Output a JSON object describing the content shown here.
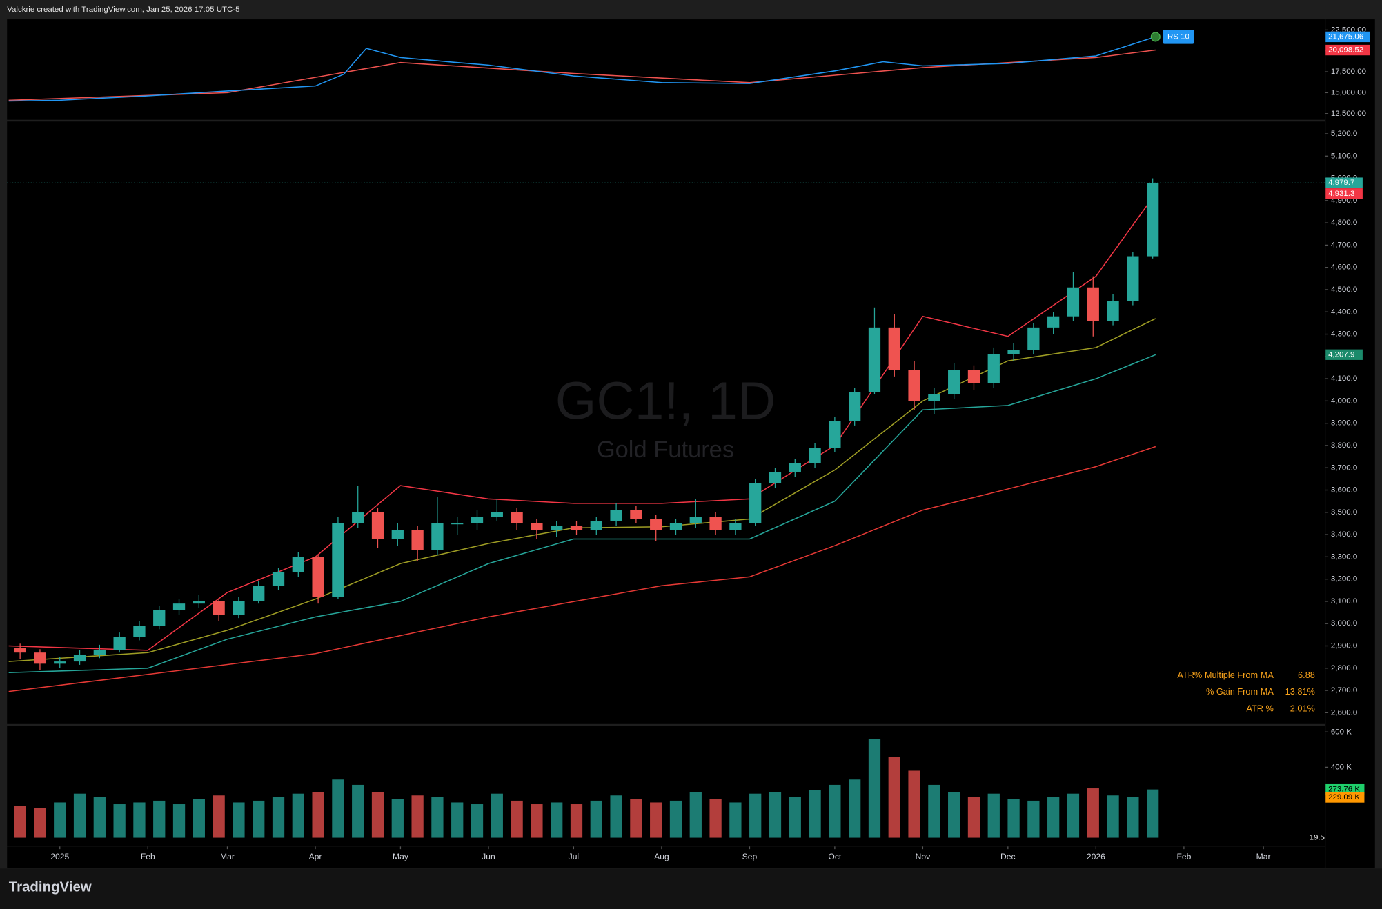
{
  "header": {
    "attribution": "Valckrie created with TradingView.com, Jan 25, 2026 17:05 UTC-5"
  },
  "watermark": {
    "symbol": "GC1!, 1D",
    "name": "Gold Futures"
  },
  "footer": {
    "brand": "TradingView"
  },
  "chart_data": {
    "type": "candlestick",
    "xlim": [
      -18.6,
      445.6
    ],
    "ylim": [
      2549,
      5255
    ],
    "up_color": "#26a69a",
    "down_color": "#ef5350",
    "xticks": [
      {
        "value": 0,
        "label": "2025"
      },
      {
        "value": 31,
        "label": "Feb"
      },
      {
        "value": 59,
        "label": "Mar"
      },
      {
        "value": 90,
        "label": "Apr"
      },
      {
        "value": 120,
        "label": "May"
      },
      {
        "value": 151,
        "label": "Jun"
      },
      {
        "value": 181,
        "label": "Jul"
      },
      {
        "value": 212,
        "label": "Aug"
      },
      {
        "value": 243,
        "label": "Sep"
      },
      {
        "value": 273,
        "label": "Oct"
      },
      {
        "value": 304,
        "label": "Nov"
      },
      {
        "value": 334,
        "label": "Dec"
      },
      {
        "value": 365,
        "label": "2026"
      },
      {
        "value": 396,
        "label": "Feb"
      },
      {
        "value": 424,
        "label": "Mar"
      }
    ],
    "yticks": [
      {
        "value": 2600,
        "label": "2,600.0"
      },
      {
        "value": 2700,
        "label": "2,700.0"
      },
      {
        "value": 2800,
        "label": "2,800.0"
      },
      {
        "value": 2900,
        "label": "2,900.0"
      },
      {
        "value": 3000,
        "label": "3,000.0"
      },
      {
        "value": 3100,
        "label": "3,100.0"
      },
      {
        "value": 3200,
        "label": "3,200.0"
      },
      {
        "value": 3300,
        "label": "3,300.0"
      },
      {
        "value": 3400,
        "label": "3,400.0"
      },
      {
        "value": 3500,
        "label": "3,500.0"
      },
      {
        "value": 3600,
        "label": "3,600.0"
      },
      {
        "value": 3700,
        "label": "3,700.0"
      },
      {
        "value": 3800,
        "label": "3,800.0"
      },
      {
        "value": 3900,
        "label": "3,900.0"
      },
      {
        "value": 4000,
        "label": "4,000.0"
      },
      {
        "value": 4100,
        "label": "4,100.0"
      },
      {
        "value": 4200,
        "label": "4,200.0"
      },
      {
        "value": 4300,
        "label": "4,300.0"
      },
      {
        "value": 4400,
        "label": "4,400.0"
      },
      {
        "value": 4500,
        "label": "4,500.0"
      },
      {
        "value": 4600,
        "label": "4,600.0"
      },
      {
        "value": 4700,
        "label": "4,700.0"
      },
      {
        "value": 4800,
        "label": "4,800.0"
      },
      {
        "value": 4900,
        "label": "4,900.0"
      },
      {
        "value": 5000,
        "label": "5,000.0"
      },
      {
        "value": 5100,
        "label": "5,100.0"
      },
      {
        "value": 5200,
        "label": "5,200.0"
      }
    ],
    "days": [
      -14,
      -7,
      0,
      7,
      14,
      21,
      28,
      35,
      42,
      49,
      56,
      63,
      70,
      77,
      84,
      91,
      98,
      105,
      112,
      119,
      126,
      133,
      140,
      147,
      154,
      161,
      168,
      175,
      182,
      189,
      196,
      203,
      210,
      217,
      224,
      231,
      238,
      245,
      252,
      259,
      266,
      273,
      280,
      287,
      294,
      301,
      308,
      315,
      322,
      329,
      336,
      343,
      350,
      357,
      364,
      371,
      378,
      385
    ],
    "ohlc": [
      [
        2890,
        2910,
        2840,
        2870
      ],
      [
        2870,
        2885,
        2790,
        2820
      ],
      [
        2820,
        2850,
        2800,
        2830
      ],
      [
        2830,
        2880,
        2815,
        2860
      ],
      [
        2860,
        2905,
        2845,
        2880
      ],
      [
        2880,
        2960,
        2870,
        2940
      ],
      [
        2940,
        3010,
        2925,
        2990
      ],
      [
        2990,
        3080,
        2975,
        3060
      ],
      [
        3060,
        3110,
        3040,
        3090
      ],
      [
        3090,
        3130,
        3070,
        3100
      ],
      [
        3100,
        3115,
        3010,
        3040
      ],
      [
        3040,
        3120,
        3025,
        3100
      ],
      [
        3100,
        3190,
        3090,
        3170
      ],
      [
        3170,
        3250,
        3150,
        3230
      ],
      [
        3230,
        3320,
        3210,
        3300
      ],
      [
        3300,
        3310,
        3090,
        3120
      ],
      [
        3120,
        3480,
        3110,
        3450
      ],
      [
        3450,
        3620,
        3430,
        3500
      ],
      [
        3500,
        3520,
        3340,
        3380
      ],
      [
        3380,
        3450,
        3350,
        3420
      ],
      [
        3420,
        3440,
        3280,
        3330
      ],
      [
        3330,
        3570,
        3310,
        3450
      ],
      [
        3450,
        3480,
        3400,
        3450
      ],
      [
        3450,
        3510,
        3420,
        3480
      ],
      [
        3480,
        3560,
        3460,
        3500
      ],
      [
        3500,
        3520,
        3420,
        3450
      ],
      [
        3450,
        3470,
        3380,
        3420
      ],
      [
        3420,
        3460,
        3390,
        3440
      ],
      [
        3440,
        3460,
        3400,
        3420
      ],
      [
        3420,
        3480,
        3400,
        3460
      ],
      [
        3460,
        3540,
        3440,
        3510
      ],
      [
        3510,
        3530,
        3450,
        3470
      ],
      [
        3470,
        3490,
        3370,
        3420
      ],
      [
        3420,
        3470,
        3400,
        3450
      ],
      [
        3450,
        3560,
        3430,
        3480
      ],
      [
        3480,
        3500,
        3400,
        3420
      ],
      [
        3420,
        3470,
        3400,
        3450
      ],
      [
        3450,
        3650,
        3440,
        3630
      ],
      [
        3630,
        3700,
        3610,
        3680
      ],
      [
        3680,
        3740,
        3660,
        3720
      ],
      [
        3720,
        3810,
        3700,
        3790
      ],
      [
        3790,
        3930,
        3770,
        3910
      ],
      [
        3910,
        4060,
        3890,
        4040
      ],
      [
        4040,
        4420,
        4030,
        4330
      ],
      [
        4330,
        4390,
        4110,
        4140
      ],
      [
        4140,
        4180,
        3960,
        4000
      ],
      [
        4000,
        4060,
        3940,
        4030
      ],
      [
        4030,
        4170,
        4010,
        4140
      ],
      [
        4140,
        4160,
        4050,
        4080
      ],
      [
        4080,
        4240,
        4060,
        4210
      ],
      [
        4210,
        4260,
        4180,
        4230
      ],
      [
        4230,
        4350,
        4210,
        4330
      ],
      [
        4330,
        4400,
        4300,
        4380
      ],
      [
        4380,
        4580,
        4360,
        4510
      ],
      [
        4510,
        4560,
        4290,
        4360
      ],
      [
        4360,
        4480,
        4340,
        4450
      ],
      [
        4450,
        4670,
        4430,
        4650
      ],
      [
        4650,
        5000,
        4640,
        4979.7
      ]
    ],
    "lines": [
      {
        "color": "#e53935",
        "x": [
          -18,
          90,
          151,
          212,
          243,
          273,
          304,
          334,
          365,
          386
        ],
        "values": [
          2695,
          2865,
          3030,
          3170,
          3210,
          3350,
          3510,
          3605,
          3705,
          3795
        ]
      },
      {
        "color": "#9e9d24",
        "x": [
          -18,
          31,
          59,
          90,
          120,
          151,
          181,
          212,
          243,
          273,
          304,
          334,
          365,
          386
        ],
        "values": [
          2830,
          2870,
          2970,
          3110,
          3270,
          3360,
          3430,
          3435,
          3470,
          3690,
          4000,
          4180,
          4240,
          4370
        ]
      },
      {
        "color": "#f23645",
        "x": [
          -18,
          31,
          59,
          90,
          120,
          151,
          181,
          212,
          243,
          273,
          304,
          334,
          365,
          386
        ],
        "values": [
          2900,
          2880,
          3140,
          3300,
          3620,
          3560,
          3540,
          3540,
          3560,
          3800,
          4380,
          4290,
          4560,
          4931.3
        ]
      },
      {
        "color": "#26a69a",
        "x": [
          -18,
          31,
          59,
          90,
          120,
          151,
          181,
          212,
          243,
          273,
          304,
          334,
          365,
          386
        ],
        "values": [
          2780,
          2800,
          2930,
          3030,
          3100,
          3270,
          3380,
          3380,
          3380,
          3550,
          3960,
          3980,
          4100,
          4207.9
        ]
      }
    ],
    "price_labels": [
      {
        "value": 4979.7,
        "label": "4,979.7",
        "color": "#26a69a"
      },
      {
        "value": 4931.3,
        "label": "4,931.3",
        "color": "#f23645"
      },
      {
        "value": 4207.9,
        "label": "4,207.9",
        "color": "#1b8a6b"
      }
    ],
    "rs": {
      "ylim": [
        11763,
        23763
      ],
      "yticks": [
        {
          "value": 12500,
          "label": "12,500.00"
        },
        {
          "value": 15000,
          "label": "15,000.00"
        },
        {
          "value": 17500,
          "label": "17,500.00"
        },
        {
          "value": 20000,
          "label": "20,000.00"
        },
        {
          "value": 22500,
          "label": "22,500.00"
        }
      ],
      "line": {
        "color": "#2196f3",
        "x": [
          -18,
          0,
          30,
          59,
          90,
          100,
          108,
          120,
          140,
          151,
          181,
          212,
          243,
          273,
          290,
          304,
          334,
          365,
          386
        ],
        "values": [
          14000,
          14100,
          14600,
          15200,
          15800,
          17200,
          20300,
          19200,
          18600,
          18300,
          17000,
          16200,
          16100,
          17600,
          18700,
          18200,
          18500,
          19400,
          21675.06
        ]
      },
      "ma": {
        "color": "#ef5350",
        "x": [
          -18,
          59,
          120,
          181,
          243,
          304,
          365,
          386
        ],
        "values": [
          14100,
          15000,
          18600,
          17300,
          16200,
          18000,
          19200,
          20098.52
        ]
      },
      "badge": "RS 10",
      "labels": [
        {
          "value": 21675.06,
          "label": "21,675.06",
          "color": "#2196f3"
        },
        {
          "value": 20098.52,
          "label": "20,098.52",
          "color": "#f23645"
        }
      ]
    },
    "volume": {
      "ylim": [
        -45,
        635
      ],
      "yticks": [
        {
          "value": 600,
          "label": "600 K"
        },
        {
          "value": 400,
          "label": "400 K"
        }
      ],
      "values": [
        180,
        170,
        200,
        250,
        230,
        190,
        200,
        210,
        190,
        220,
        240,
        200,
        210,
        230,
        250,
        260,
        330,
        300,
        260,
        220,
        240,
        230,
        200,
        190,
        250,
        210,
        190,
        200,
        190,
        210,
        240,
        220,
        200,
        210,
        260,
        220,
        200,
        250,
        260,
        230,
        270,
        300,
        330,
        560,
        460,
        380,
        300,
        260,
        230,
        250,
        220,
        210,
        230,
        250,
        280,
        240,
        230,
        273.76
      ],
      "labels": [
        {
          "value": 273.76,
          "label": "273.76 K",
          "color": "#1fcf6b"
        },
        {
          "value": 229.09,
          "label": "229.09 K",
          "color": "#ff9800"
        }
      ],
      "indicator_label": "19.5"
    },
    "indicator_table": [
      {
        "label": "ATR% Multiple From MA",
        "value": "6.88"
      },
      {
        "label": "% Gain From MA",
        "value": "13.81%"
      },
      {
        "label": "ATR %",
        "value": "2.01%"
      }
    ]
  }
}
